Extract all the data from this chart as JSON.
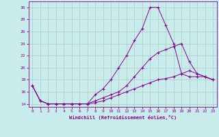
{
  "xlabel": "Windchill (Refroidissement éolien,°C)",
  "background_color": "#c8ecec",
  "line_color": "#880088",
  "grid_color": "#b0c8c8",
  "xlim": [
    -0.5,
    23.5
  ],
  "ylim": [
    13.5,
    31
  ],
  "yticks": [
    14,
    16,
    18,
    20,
    22,
    24,
    26,
    28,
    30
  ],
  "xticks": [
    0,
    1,
    2,
    3,
    4,
    5,
    6,
    7,
    8,
    9,
    10,
    11,
    12,
    13,
    14,
    15,
    16,
    17,
    18,
    19,
    20,
    21,
    22,
    23
  ],
  "line1_x": [
    0,
    1,
    2,
    3,
    4,
    5,
    6,
    7,
    8,
    9,
    10,
    11,
    12,
    13,
    14,
    15,
    16,
    17,
    18,
    19,
    20,
    21,
    22,
    23
  ],
  "line1_y": [
    17,
    14.5,
    14,
    14,
    14,
    14,
    14,
    14,
    15.5,
    16.5,
    18,
    20,
    22,
    24.5,
    26.5,
    30,
    30,
    27,
    24,
    19,
    18.5,
    18.5,
    18.5,
    18
  ],
  "line2_x": [
    0,
    1,
    2,
    3,
    4,
    5,
    6,
    7,
    8,
    9,
    10,
    11,
    12,
    13,
    14,
    15,
    16,
    17,
    18,
    19,
    20,
    21,
    22,
    23
  ],
  "line2_y": [
    17,
    14.5,
    14,
    14,
    14,
    14,
    14,
    14,
    14.5,
    15,
    15.5,
    16,
    17,
    18.5,
    20,
    21.5,
    22.5,
    23,
    23.5,
    24,
    21,
    19,
    18.5,
    18
  ],
  "line3_x": [
    0,
    1,
    2,
    3,
    4,
    5,
    6,
    7,
    8,
    9,
    10,
    11,
    12,
    13,
    14,
    15,
    16,
    17,
    18,
    19,
    20,
    21,
    22,
    23
  ],
  "line3_y": [
    17,
    14.5,
    14,
    14,
    14,
    14,
    14,
    14,
    14.2,
    14.5,
    15,
    15.5,
    16,
    16.5,
    17,
    17.5,
    18,
    18.2,
    18.5,
    19,
    19.5,
    19,
    18.5,
    18
  ]
}
